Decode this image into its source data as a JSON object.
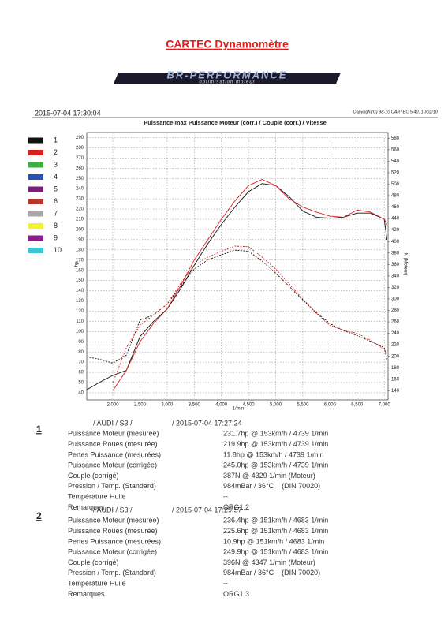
{
  "header": {
    "title": "CARTEC Dynamomètre",
    "logo": "BR-PERFORMANCE",
    "logo_sub": "optimisation moteur",
    "datetime": "2015-07-04 17:30:04",
    "copyright": "Copyright(C) 98-10 CARTEC 5.40, 10/02/10"
  },
  "chart_data": {
    "type": "line",
    "title": "Puissance-max Puissance Moteur (corr.) / Couple (corr.) / Vitesse",
    "x_label": "1/min",
    "y_label": "hp",
    "y2_label": "N (Moteur)",
    "x": [
      1520,
      1750,
      2000,
      2250,
      2500,
      2750,
      3000,
      3250,
      3500,
      3750,
      4000,
      4250,
      4500,
      4750,
      5000,
      5250,
      5500,
      5750,
      6000,
      6250,
      6500,
      6750,
      7000,
      7050
    ],
    "series": [
      {
        "color": "#111111",
        "power": [
          43,
          50,
          57,
          62,
          95,
          110,
          122,
          142,
          165,
          186,
          205,
          222,
          237,
          245,
          243,
          232,
          218,
          212,
          211,
          212,
          216,
          216,
          210,
          190
        ],
        "torque": [
          199,
          195,
          188,
          202,
          263,
          272,
          291,
          322,
          352,
          368,
          377,
          385,
          383,
          366,
          345,
          322,
          298,
          276,
          257,
          245,
          236,
          226,
          215,
          195
        ]
      },
      {
        "color": "#d62020",
        "power": [
          null,
          null,
          42,
          62,
          90,
          108,
          122,
          145,
          170,
          190,
          210,
          228,
          243,
          249,
          243,
          230,
          222,
          217,
          213,
          212,
          219,
          217,
          210,
          205
        ],
        "torque": [
          null,
          null,
          154,
          215,
          254,
          272,
          291,
          327,
          359,
          373,
          383,
          392,
          391,
          373,
          352,
          326,
          300,
          275,
          254,
          245,
          240,
          228,
          212,
          205
        ]
      }
    ],
    "legend": [
      {
        "label": "1",
        "color": "#111111"
      },
      {
        "label": "2",
        "color": "#d62020"
      },
      {
        "label": "3",
        "color": "#3cae3c"
      },
      {
        "label": "4",
        "color": "#2452b8"
      },
      {
        "label": "5",
        "color": "#7b1f7b"
      },
      {
        "label": "6",
        "color": "#b5352a"
      },
      {
        "label": "7",
        "color": "#a8a8a8"
      },
      {
        "label": "8",
        "color": "#f2f22e"
      },
      {
        "label": "9",
        "color": "#8b1a8b"
      },
      {
        "label": "10",
        "color": "#3fc2d2"
      }
    ],
    "xlim": [
      1520,
      7070
    ],
    "xticks": [
      {
        "value": 2000,
        "label": "2,000"
      },
      {
        "value": 2500,
        "label": "2,500"
      },
      {
        "value": 3000,
        "label": "3,000"
      },
      {
        "value": 3500,
        "label": "3,500"
      },
      {
        "value": 4000,
        "label": "4,000"
      },
      {
        "value": 4500,
        "label": "4,500"
      },
      {
        "value": 5000,
        "label": "5,000"
      },
      {
        "value": 5500,
        "label": "5,500"
      },
      {
        "value": 6000,
        "label": "6,000"
      },
      {
        "value": 6500,
        "label": "6,500"
      },
      {
        "value": 7000,
        "label": "7,000"
      }
    ],
    "ylim": [
      33,
      295
    ],
    "yticks": [
      40,
      50,
      60,
      70,
      80,
      90,
      100,
      110,
      120,
      130,
      140,
      150,
      160,
      170,
      180,
      190,
      200,
      210,
      220,
      230,
      240,
      250,
      260,
      270,
      280,
      290
    ],
    "y2lim": [
      124,
      590
    ],
    "y2ticks": [
      140,
      160,
      180,
      200,
      220,
      240,
      260,
      280,
      300,
      320,
      340,
      360,
      380,
      400,
      420,
      440,
      460,
      480,
      500,
      520,
      540,
      560,
      580
    ],
    "grid": true
  },
  "runs": [
    {
      "index": "1",
      "vehicle": "/ AUDI / S3 /",
      "date": "/ 2015-07-04 17:27:24",
      "rows": [
        [
          "Puissance Moteur (mesurée)",
          "231.7hp @ 153km/h / 4739 1/min"
        ],
        [
          "Puissance Roues (mesurée)",
          "219.9hp @ 153km/h / 4739 1/min"
        ],
        [
          "Pertes Puissance (mesurées)",
          "11.8hp @ 153km/h / 4739 1/min"
        ],
        [
          "Puissance Moteur (corrigée)",
          "245.0hp @ 153km/h / 4739 1/min"
        ],
        [
          "Couple (corrigé)",
          "387N @ 4329 1/min (Moteur)"
        ],
        [
          "Pression / Temp. (Standard)",
          "984mBar / 36°C    (DIN 70020)"
        ],
        [
          "Température Huile",
          "--"
        ],
        [
          "Remarques",
          "ORG1.2"
        ]
      ]
    },
    {
      "index": "2",
      "vehicle": "/ AUDI / S3 /",
      "date": "/ 2015-07-04 17:29:57",
      "rows": [
        [
          "Puissance Moteur (mesurée)",
          "236.4hp @ 151km/h / 4683 1/min"
        ],
        [
          "Puissance Roues (mesurée)",
          "225.6hp @ 151km/h / 4683 1/min"
        ],
        [
          "Pertes Puissance (mesurées)",
          "10.9hp @ 151km/h / 4683 1/min"
        ],
        [
          "Puissance Moteur (corrigée)",
          "249.9hp @ 151km/h / 4683 1/min"
        ],
        [
          "Couple (corrigé)",
          "396N @ 4347 1/min (Moteur)"
        ],
        [
          "Pression / Temp. (Standard)",
          "984mBar / 36°C    (DIN 70020)"
        ],
        [
          "Température Huile",
          "--"
        ],
        [
          "Remarques",
          "ORG1.3"
        ]
      ]
    }
  ]
}
